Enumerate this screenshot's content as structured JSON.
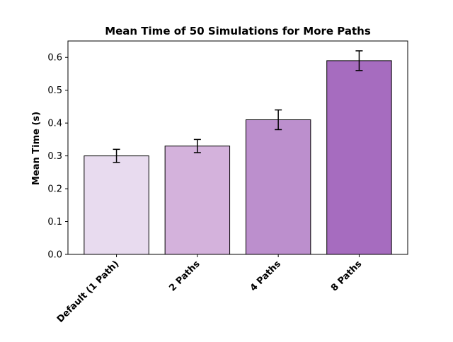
{
  "chart_data": {
    "type": "bar",
    "title": "Mean Time of 50 Simulations for More Paths",
    "xlabel": "",
    "ylabel": "Mean Time (s)",
    "categories": [
      "Default (1 Path)",
      "2 Paths",
      "4 Paths",
      "8 Paths"
    ],
    "values": [
      0.3,
      0.33,
      0.41,
      0.59
    ],
    "errors": [
      0.02,
      0.02,
      0.03,
      0.03
    ],
    "ylim": [
      0,
      0.65
    ],
    "yticks": [
      0.0,
      0.1,
      0.2,
      0.3,
      0.4,
      0.5,
      0.6
    ],
    "ytick_labels": [
      "0.0",
      "0.1",
      "0.2",
      "0.3",
      "0.4",
      "0.5",
      "0.6"
    ],
    "bar_colors": [
      "#e8dbef",
      "#d4b2dc",
      "#bc8fcd",
      "#a66cbf"
    ],
    "edge_color": "#000000",
    "grid": false,
    "legend": "none"
  }
}
